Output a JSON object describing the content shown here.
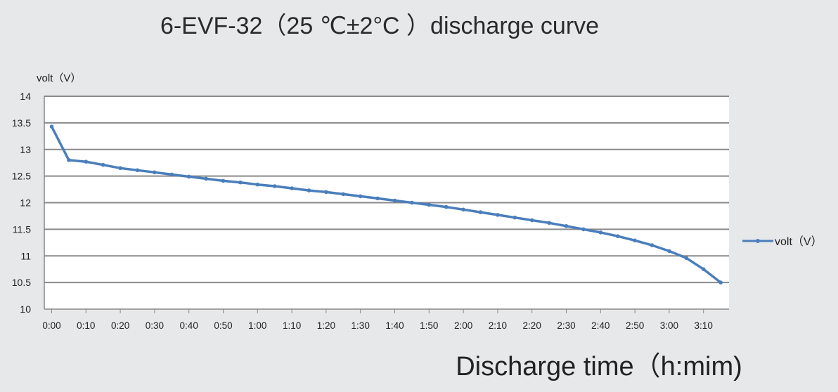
{
  "chart_data": {
    "type": "line",
    "title": "6-EVF-32（25 ℃±2°C ）discharge curve",
    "ylabel": "volt（V）",
    "xlabel": "Discharge time（h:mim)",
    "legend": [
      "volt（V）"
    ],
    "legend_position": "right",
    "grid": true,
    "ylim": [
      10,
      14
    ],
    "yticks": [
      14,
      13.5,
      13,
      12.5,
      12,
      11.5,
      11,
      10.5,
      10
    ],
    "ytick_labels": [
      "14",
      "13.5",
      "13",
      "12.5",
      "12",
      "11.5",
      "11",
      "10.5",
      "10"
    ],
    "xtick_labels": [
      "0:00",
      "0:10",
      "0:20",
      "0:30",
      "0:40",
      "0:50",
      "1:00",
      "1:10",
      "1:20",
      "1:30",
      "1:40",
      "1:50",
      "2:00",
      "2:10",
      "2:20",
      "2:30",
      "2:40",
      "2:50",
      "3:00",
      "3:10"
    ],
    "series": [
      {
        "name": "volt（V）",
        "color": "#4a7ebb",
        "x": [
          "0:00",
          "0:05",
          "0:10",
          "0:15",
          "0:20",
          "0:25",
          "0:30",
          "0:35",
          "0:40",
          "0:45",
          "0:50",
          "0:55",
          "1:00",
          "1:05",
          "1:10",
          "1:15",
          "1:20",
          "1:25",
          "1:30",
          "1:35",
          "1:40",
          "1:45",
          "1:50",
          "1:55",
          "2:00",
          "2:05",
          "2:10",
          "2:15",
          "2:20",
          "2:25",
          "2:30",
          "2:35",
          "2:40",
          "2:45",
          "2:50",
          "2:55",
          "3:00",
          "3:05",
          "3:10",
          "3:15"
        ],
        "values": [
          13.43,
          12.8,
          12.77,
          12.71,
          12.65,
          12.61,
          12.57,
          12.53,
          12.49,
          12.45,
          12.41,
          12.38,
          12.34,
          12.31,
          12.27,
          12.23,
          12.2,
          12.16,
          12.12,
          12.08,
          12.04,
          12.0,
          11.96,
          11.92,
          11.87,
          11.82,
          11.77,
          11.72,
          11.67,
          11.62,
          11.56,
          11.5,
          11.44,
          11.37,
          11.29,
          11.2,
          11.09,
          10.96,
          10.75,
          10.5
        ]
      }
    ]
  }
}
